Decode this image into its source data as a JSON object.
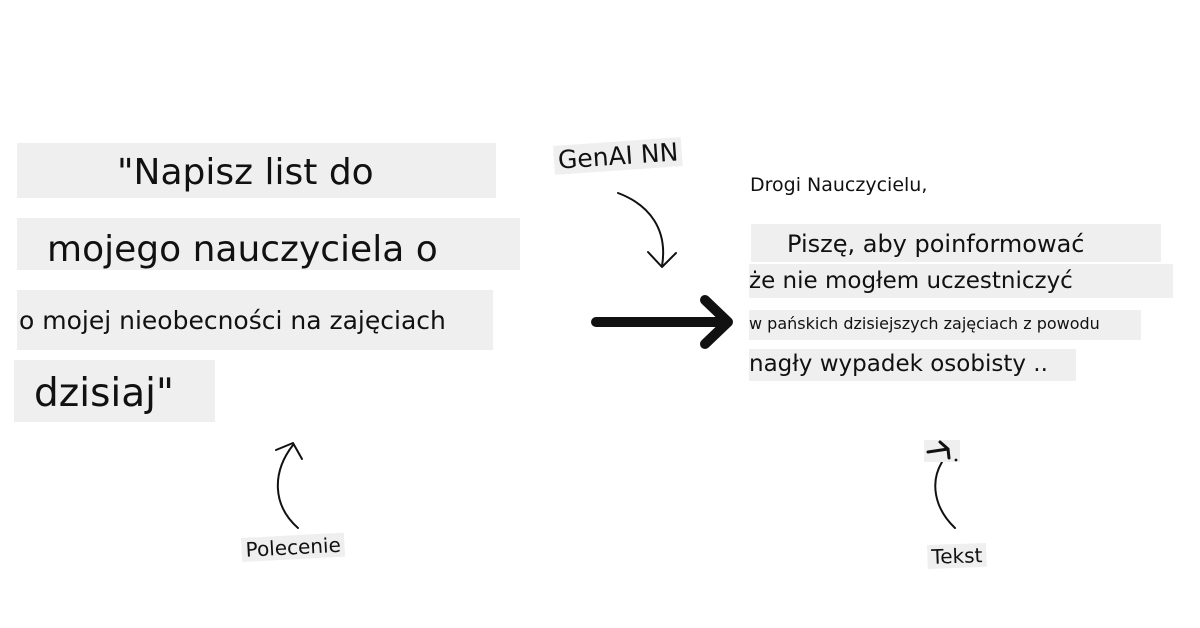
{
  "prompt": {
    "lines": [
      "\"Napisz list do",
      "mojego nauczyciela o",
      "o mojej nieobecności na zajęciach",
      "dzisiaj\""
    ],
    "label": "Polecenie"
  },
  "model": {
    "label": "GenAI NN"
  },
  "output": {
    "lines": [
      "Drogi Nauczycielu,",
      "Piszę, aby poinformować",
      "że nie mogłem uczestniczyć",
      "w pańskich dzisiejszych zajęciach z powodu",
      "nagły wypadek osobisty .."
    ],
    "label": "Tekst"
  },
  "colors": {
    "highlight": "#efefef",
    "ink": "#111111"
  }
}
